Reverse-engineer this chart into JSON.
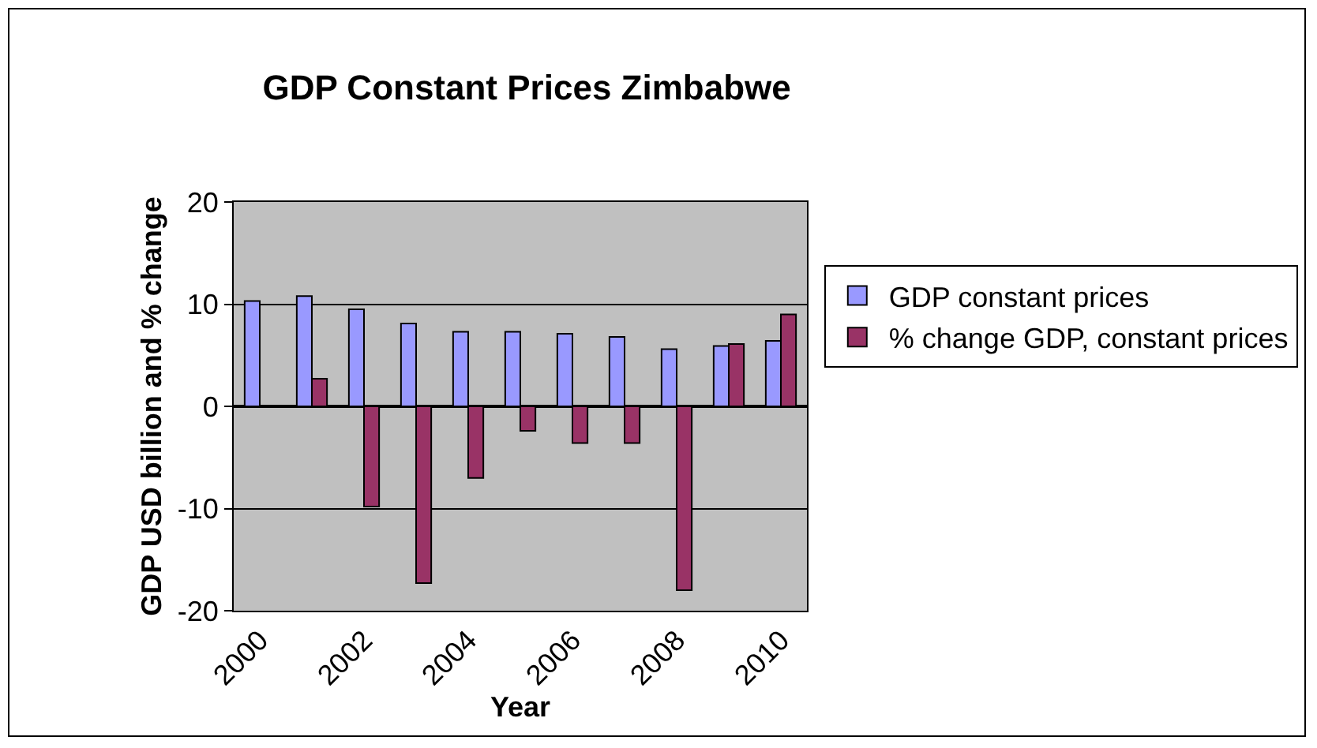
{
  "chart_data": {
    "type": "bar",
    "title": "GDP Constant Prices Zimbabwe",
    "xlabel": "Year",
    "ylabel": "GDP USD billion and % change",
    "categories": [
      "2000",
      null,
      "2002",
      null,
      "2004",
      null,
      "2006",
      null,
      "2008",
      null,
      "2010"
    ],
    "series": [
      {
        "name": "GDP constant prices",
        "color": "#9999ff",
        "values": [
          10.3,
          10.8,
          9.5,
          8.1,
          7.3,
          7.3,
          7.1,
          6.8,
          5.6,
          5.9,
          6.4
        ]
      },
      {
        "name": "% change GDP, constant prices",
        "color": "#993366",
        "values": [
          null,
          2.7,
          -9.8,
          -17.3,
          -7.0,
          -2.4,
          -3.6,
          -3.6,
          -18.0,
          6.1,
          9.0
        ]
      }
    ],
    "ylim": [
      -20,
      20
    ],
    "yticks": [
      -20,
      -10,
      0,
      10,
      20
    ],
    "grid": "y",
    "legend": "right"
  }
}
